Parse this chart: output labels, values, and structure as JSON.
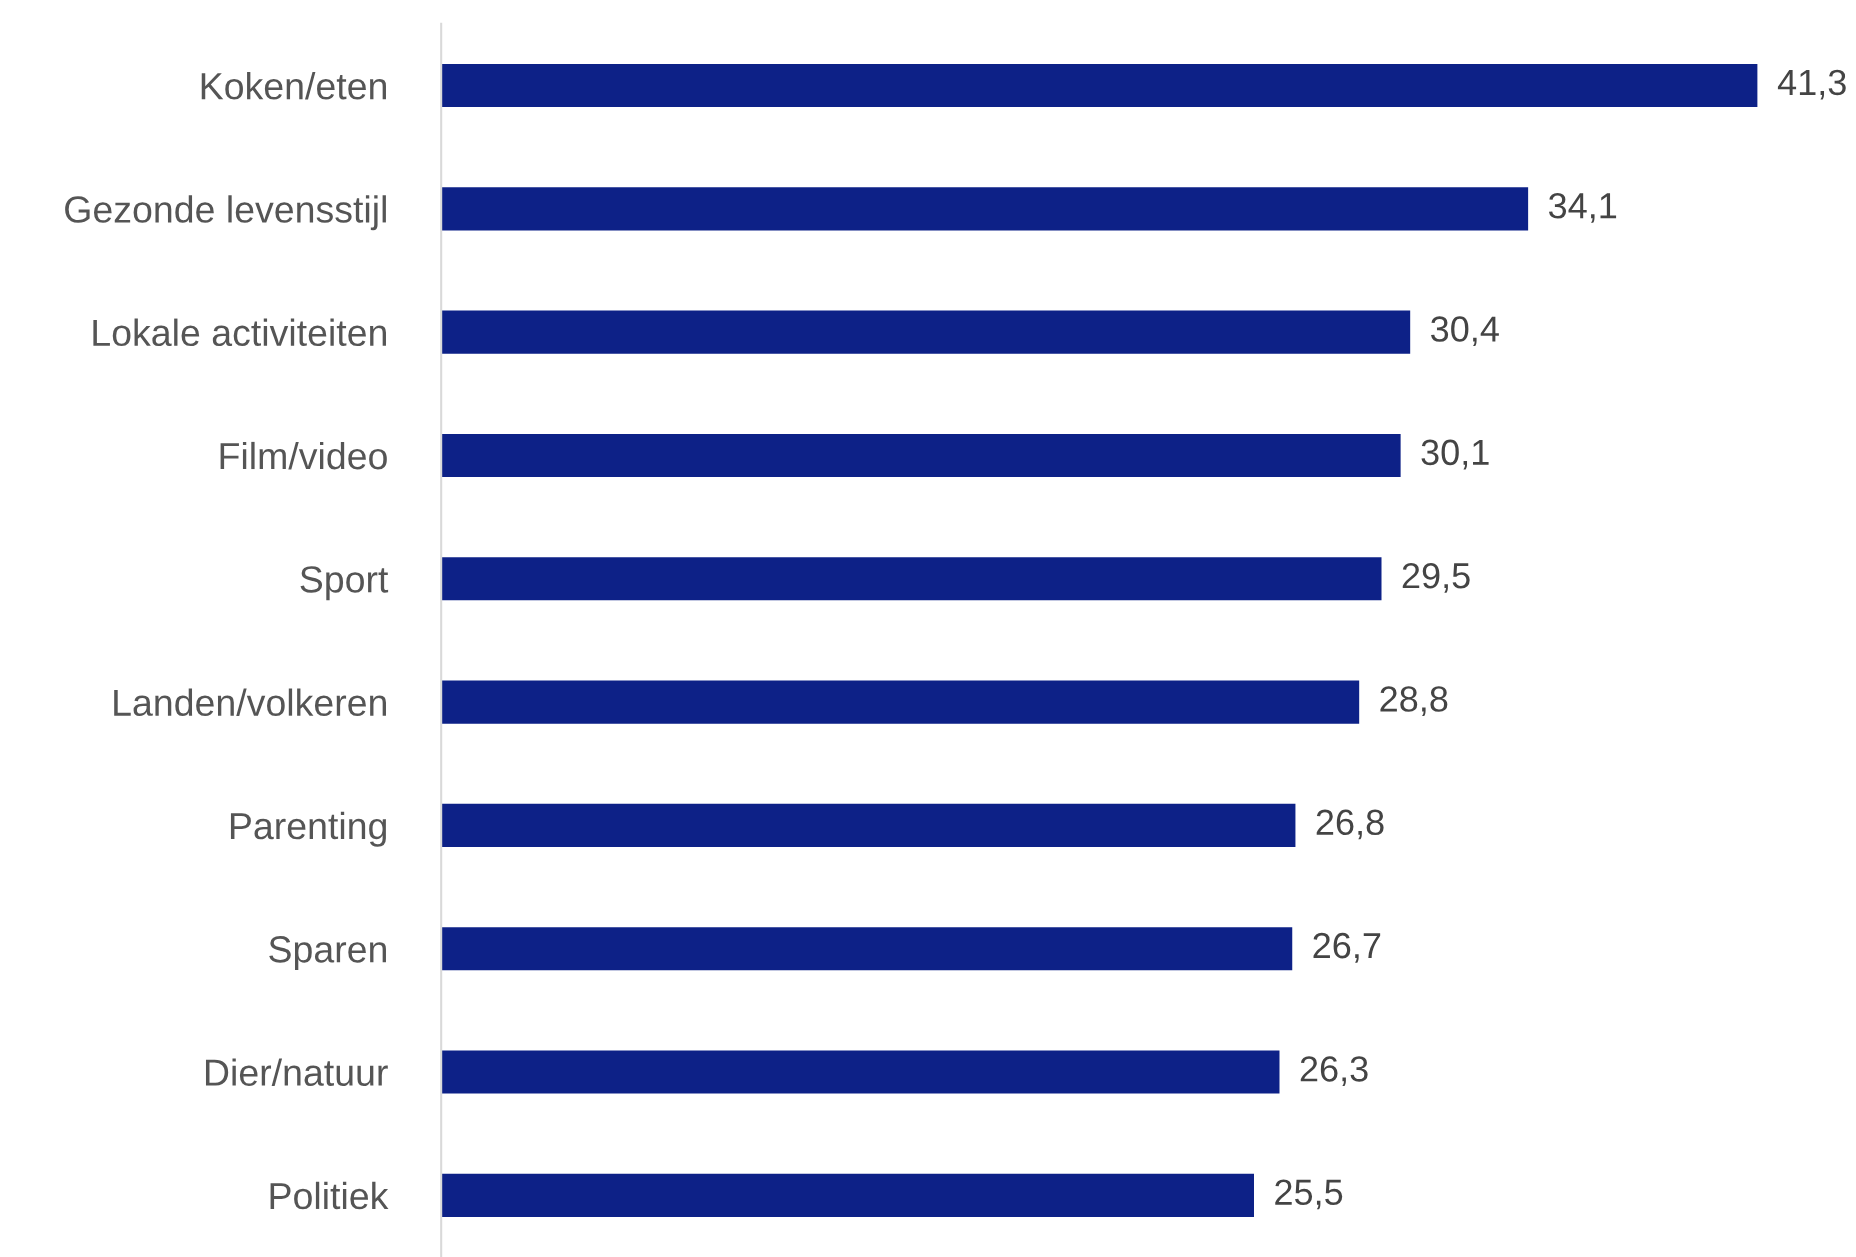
{
  "chart_data": {
    "type": "bar",
    "orientation": "horizontal",
    "categories": [
      "Koken/eten",
      "Gezonde levensstijl",
      "Lokale activiteiten",
      "Film/video",
      "Sport",
      "Landen/volkeren",
      "Parenting",
      "Sparen",
      "Dier/natuur",
      "Politiek"
    ],
    "values": [
      41.3,
      34.1,
      30.4,
      30.1,
      29.5,
      28.8,
      26.8,
      26.7,
      26.3,
      25.5
    ],
    "value_labels": [
      "41,3",
      "34,1",
      "30,4",
      "30,1",
      "29,5",
      "28,8",
      "26,8",
      "26,7",
      "26,3",
      "25,5"
    ],
    "color": "#0d2187",
    "grid": false,
    "legend": false
  }
}
